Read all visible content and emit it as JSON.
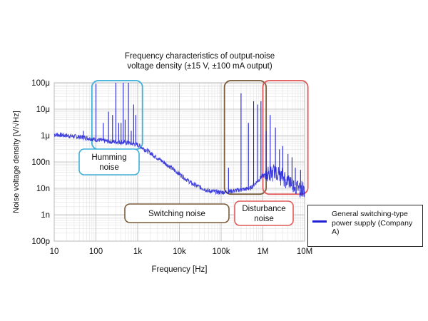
{
  "title_line1": "Frequency characteristics of output-noise",
  "title_line2": "voltage density (±15 V, ±100 mA output)",
  "chart_data": {
    "type": "line",
    "title": "Frequency characteristics of output-noise voltage density (±15 V, ±100 mA output)",
    "xlabel": "Frequency [Hz]",
    "ylabel": "Noise voltage density [V/√Hz]",
    "x_scale": "log",
    "y_scale": "log",
    "xlim": [
      10,
      10000000
    ],
    "ylim": [
      1e-10,
      0.0001
    ],
    "x_ticks": [
      10,
      100,
      1000,
      10000,
      100000,
      1000000,
      10000000
    ],
    "x_tick_labels": [
      "10",
      "100",
      "1k",
      "10k",
      "100k",
      "1M",
      "10M"
    ],
    "y_ticks": [
      1e-10,
      1e-09,
      1e-08,
      1e-07,
      1e-06,
      1e-05,
      0.0001
    ],
    "y_tick_labels": [
      "100p",
      "1n",
      "10n",
      "100n",
      "1μ",
      "10μ",
      "100μ"
    ],
    "grid": true,
    "legend_position": "right",
    "series": [
      {
        "name": "General switching-type power supply (Company A)",
        "color": "#1f1fd6",
        "baseline": {
          "x": [
            10,
            20,
            50,
            100,
            200,
            500,
            1000,
            2000,
            5000,
            10000,
            20000,
            50000,
            100000,
            200000,
            500000,
            1000000,
            2000000,
            5000000,
            10000000
          ],
          "y": [
            1.1e-06,
            1e-06,
            8.5e-07,
            7e-07,
            6e-07,
            5.5e-07,
            4.5e-07,
            2.2e-07,
            8e-08,
            3.5e-08,
            1.5e-08,
            8e-09,
            7e-09,
            8e-09,
            1e-08,
            3e-08,
            4e-08,
            1.5e-08,
            8e-09
          ]
        },
        "spikes": {
          "x": [
            50,
            100,
            150,
            200,
            250,
            300,
            350,
            400,
            450,
            500,
            600,
            700,
            800,
            900,
            150000,
            300000,
            450000,
            600000,
            750000,
            900000,
            1200000,
            1500000,
            2000000,
            2500000,
            3000000,
            4000000,
            5000000,
            6000000,
            8000000
          ],
          "y": [
            1.5e-06,
            9e-05,
            3e-06,
            8e-06,
            6e-06,
            0.0001,
            3e-06,
            3e-06,
            0.0001,
            4e-06,
            0.0001,
            1.5e-06,
            1.5e-05,
            6e-06,
            6e-08,
            4e-05,
            3e-06,
            2e-05,
            1.5e-05,
            2e-05,
            1.5e-06,
            6e-06,
            2e-06,
            3e-07,
            4e-07,
            2e-07,
            1.5e-07,
            6e-08,
            5e-08
          ]
        }
      }
    ],
    "annotations": [
      {
        "label": "Humming noise",
        "color": "#3fb0d8",
        "region_x": [
          80,
          1300
        ],
        "region_y": [
          3e-07,
          0.00012
        ]
      },
      {
        "label": "Switching noise",
        "color": "#7a5c3a",
        "region_x": [
          120000,
          1200000
        ],
        "region_y": [
          6e-09,
          0.00012
        ]
      },
      {
        "label": "Disturbance noise",
        "color": "#e05a5a",
        "region_x": [
          1000000,
          12000000
        ],
        "region_y": [
          6e-09,
          0.00012
        ]
      }
    ]
  }
}
